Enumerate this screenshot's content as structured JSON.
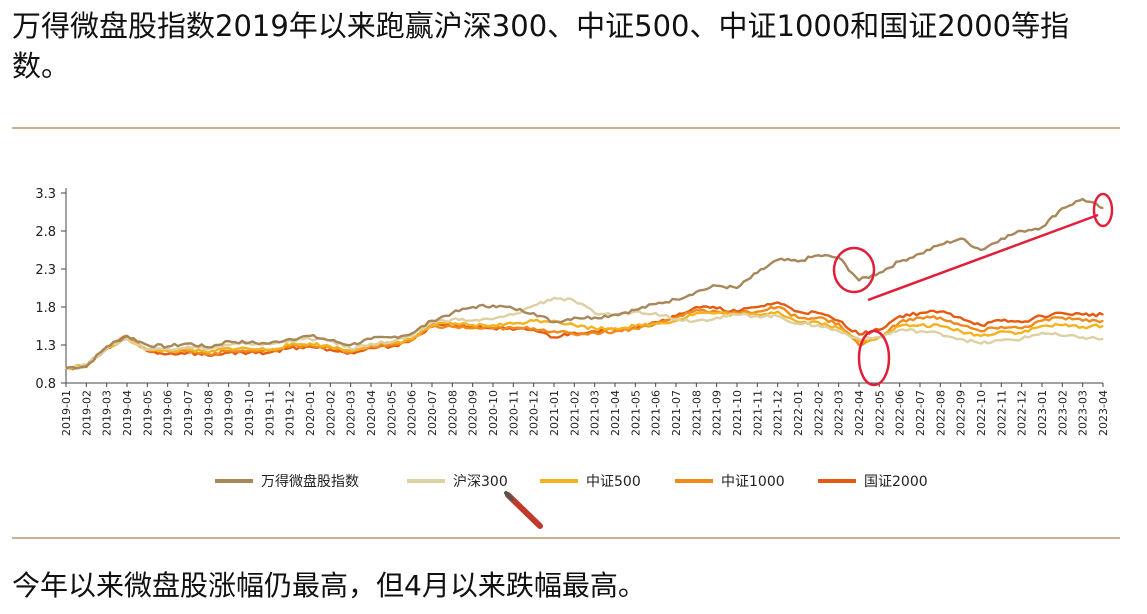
{
  "heading": "万得微盘股指数2019年以来跑赢沪深300、中证500、中证1000和国证2000等指数。",
  "footer_text": "今年以来微盘股涨幅仍最高，但4月以来跌幅最高。",
  "chart_data": {
    "type": "line",
    "title": "",
    "xlabel": "",
    "ylabel": "",
    "ylim": [
      0.8,
      3.3
    ],
    "yticks": [
      0.8,
      1.3,
      1.8,
      2.3,
      2.8,
      3.3
    ],
    "x": [
      "2019-01",
      "2019-02",
      "2019-03",
      "2019-04",
      "2019-05",
      "2019-06",
      "2019-07",
      "2019-08",
      "2019-09",
      "2019-10",
      "2019-11",
      "2019-12",
      "2020-01",
      "2020-02",
      "2020-03",
      "2020-04",
      "2020-05",
      "2020-06",
      "2020-07",
      "2020-08",
      "2020-09",
      "2020-10",
      "2020-11",
      "2020-12",
      "2021-01",
      "2021-02",
      "2021-03",
      "2021-04",
      "2021-05",
      "2021-06",
      "2021-07",
      "2021-08",
      "2021-09",
      "2021-10",
      "2021-11",
      "2021-12",
      "2022-01",
      "2022-02",
      "2022-03",
      "2022-04",
      "2022-05",
      "2022-06",
      "2022-07",
      "2022-08",
      "2022-09",
      "2022-10",
      "2022-11",
      "2022-12",
      "2023-01",
      "2023-02",
      "2023-03",
      "2023-04"
    ],
    "legend_position": "bottom",
    "series": [
      {
        "name": "万得微盘股指数",
        "color": "#a8875a",
        "values": [
          1.0,
          1.02,
          1.28,
          1.42,
          1.3,
          1.28,
          1.32,
          1.27,
          1.35,
          1.33,
          1.32,
          1.38,
          1.42,
          1.36,
          1.3,
          1.38,
          1.4,
          1.45,
          1.62,
          1.72,
          1.8,
          1.82,
          1.78,
          1.72,
          1.6,
          1.66,
          1.66,
          1.7,
          1.76,
          1.84,
          1.9,
          2.0,
          2.08,
          2.05,
          2.25,
          2.42,
          2.4,
          2.48,
          2.45,
          2.15,
          2.25,
          2.4,
          2.5,
          2.62,
          2.7,
          2.55,
          2.7,
          2.8,
          2.85,
          3.1,
          3.22,
          3.1
        ]
      },
      {
        "name": "沪深300",
        "color": "#ddd0a3",
        "values": [
          1.0,
          1.04,
          1.26,
          1.38,
          1.24,
          1.25,
          1.28,
          1.25,
          1.3,
          1.32,
          1.31,
          1.36,
          1.38,
          1.36,
          1.25,
          1.32,
          1.34,
          1.42,
          1.6,
          1.64,
          1.62,
          1.64,
          1.7,
          1.82,
          1.92,
          1.88,
          1.72,
          1.7,
          1.74,
          1.72,
          1.64,
          1.62,
          1.66,
          1.7,
          1.68,
          1.68,
          1.58,
          1.56,
          1.48,
          1.38,
          1.4,
          1.5,
          1.48,
          1.45,
          1.38,
          1.32,
          1.36,
          1.38,
          1.46,
          1.42,
          1.4,
          1.38
        ]
      },
      {
        "name": "中证500",
        "color": "#f3b21e",
        "values": [
          1.0,
          1.03,
          1.26,
          1.38,
          1.24,
          1.22,
          1.24,
          1.2,
          1.26,
          1.25,
          1.24,
          1.3,
          1.32,
          1.28,
          1.22,
          1.3,
          1.32,
          1.38,
          1.56,
          1.58,
          1.56,
          1.56,
          1.58,
          1.62,
          1.62,
          1.56,
          1.52,
          1.52,
          1.55,
          1.58,
          1.62,
          1.72,
          1.72,
          1.7,
          1.7,
          1.74,
          1.6,
          1.6,
          1.52,
          1.35,
          1.4,
          1.55,
          1.56,
          1.55,
          1.48,
          1.42,
          1.48,
          1.46,
          1.55,
          1.56,
          1.54,
          1.55
        ]
      },
      {
        "name": "中证1000",
        "color": "#f08a1a",
        "values": [
          1.0,
          1.02,
          1.26,
          1.4,
          1.24,
          1.22,
          1.22,
          1.18,
          1.22,
          1.22,
          1.22,
          1.28,
          1.3,
          1.26,
          1.2,
          1.28,
          1.3,
          1.36,
          1.54,
          1.54,
          1.52,
          1.52,
          1.52,
          1.52,
          1.48,
          1.44,
          1.46,
          1.48,
          1.52,
          1.58,
          1.66,
          1.76,
          1.74,
          1.72,
          1.74,
          1.8,
          1.66,
          1.66,
          1.58,
          1.3,
          1.4,
          1.6,
          1.66,
          1.66,
          1.56,
          1.48,
          1.54,
          1.52,
          1.62,
          1.66,
          1.62,
          1.62
        ]
      },
      {
        "name": "国证2000",
        "color": "#e35a10",
        "values": [
          1.0,
          1.01,
          1.25,
          1.42,
          1.22,
          1.18,
          1.2,
          1.16,
          1.2,
          1.2,
          1.2,
          1.26,
          1.28,
          1.24,
          1.2,
          1.26,
          1.28,
          1.36,
          1.56,
          1.58,
          1.54,
          1.52,
          1.5,
          1.5,
          1.4,
          1.46,
          1.48,
          1.5,
          1.54,
          1.6,
          1.68,
          1.8,
          1.78,
          1.74,
          1.8,
          1.86,
          1.74,
          1.72,
          1.62,
          1.44,
          1.5,
          1.68,
          1.72,
          1.74,
          1.66,
          1.56,
          1.62,
          1.6,
          1.68,
          1.72,
          1.7,
          1.7
        ]
      }
    ]
  }
}
